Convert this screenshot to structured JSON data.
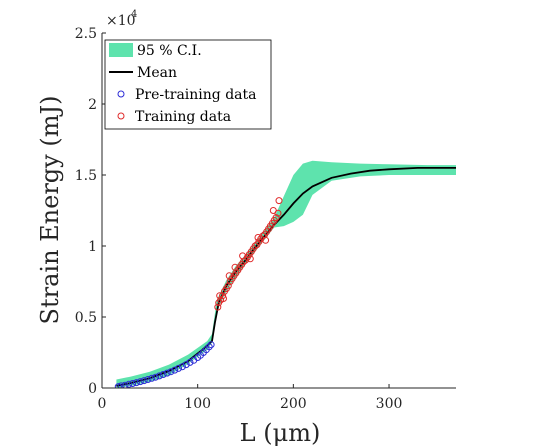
{
  "chart_data": {
    "type": "line",
    "title": "",
    "xlabel": "L (μm)",
    "ylabel": "Strain Energy (mJ)",
    "y_exponent_label": "×10",
    "y_exponent_power": "4",
    "xlim": [
      0,
      370
    ],
    "ylim": [
      0,
      25000
    ],
    "x_ticks": [
      0,
      100,
      200,
      300
    ],
    "y_ticks": [
      0,
      5000,
      10000,
      15000,
      20000,
      25000
    ],
    "x_tick_labels": [
      "0",
      "100",
      "200",
      "300"
    ],
    "y_tick_labels": [
      "0",
      "0.5",
      "1",
      "1.5",
      "2",
      "2.5"
    ],
    "legend_position": "top-left",
    "colors": {
      "ci_fill": "#5ee3ad",
      "mean_line": "#000000",
      "pretraining": "#2c2cd6",
      "training": "#e02a2a"
    },
    "legend": [
      {
        "label": "95 % C.I.",
        "kind": "fill"
      },
      {
        "label": "Mean",
        "kind": "line"
      },
      {
        "label": "Pre-training data",
        "kind": "marker-blue"
      },
      {
        "label": "Training data",
        "kind": "marker-red"
      }
    ],
    "ci_band": {
      "x": [
        15,
        30,
        50,
        70,
        90,
        110,
        115,
        120,
        130,
        140,
        160,
        180,
        190,
        200,
        210,
        220,
        240,
        270,
        300,
        340,
        370
      ],
      "upper": [
        600,
        800,
        1150,
        1650,
        2350,
        3300,
        3800,
        6200,
        7600,
        8600,
        10200,
        12000,
        13500,
        15000,
        15800,
        16000,
        15900,
        15800,
        15750,
        15700,
        15700
      ],
      "lower": [
        0,
        150,
        450,
        900,
        1700,
        2700,
        3200,
        5400,
        6800,
        7800,
        9600,
        11300,
        11400,
        11700,
        12200,
        13600,
        14600,
        14900,
        15000,
        15000,
        15000
      ]
    },
    "series": [
      {
        "name": "Mean",
        "x": [
          15,
          30,
          50,
          70,
          90,
          105,
          115,
          118,
          122,
          130,
          140,
          150,
          160,
          170,
          180,
          190,
          200,
          210,
          220,
          240,
          260,
          280,
          300,
          330,
          370
        ],
        "y": [
          150,
          350,
          700,
          1200,
          1900,
          2700,
          3300,
          4600,
          6000,
          7200,
          8200,
          9000,
          9900,
          10700,
          11500,
          12200,
          13000,
          13700,
          14200,
          14800,
          15100,
          15300,
          15400,
          15500,
          15500
        ]
      },
      {
        "name": "Pre-training data",
        "x": [
          17,
          20,
          24,
          28,
          32,
          36,
          40,
          44,
          48,
          52,
          56,
          60,
          64,
          68,
          72,
          76,
          80,
          84,
          88,
          92,
          96,
          100,
          103,
          106,
          109,
          112,
          114
        ],
        "y": [
          100,
          150,
          200,
          260,
          320,
          380,
          450,
          520,
          600,
          680,
          760,
          850,
          950,
          1050,
          1150,
          1260,
          1380,
          1500,
          1650,
          1800,
          1950,
          2150,
          2300,
          2500,
          2700,
          2900,
          3050
        ]
      },
      {
        "name": "Training data",
        "x": [
          121,
          122,
          124,
          126,
          128,
          130,
          132,
          134,
          136,
          138,
          140,
          142,
          144,
          146,
          148,
          150,
          152,
          154,
          156,
          158,
          160,
          162,
          164,
          166,
          168,
          170,
          172,
          174,
          176,
          178,
          180,
          182,
          184,
          123,
          127,
          133,
          139,
          147,
          155,
          163,
          171,
          179,
          185
        ],
        "y": [
          5700,
          6000,
          6200,
          6500,
          6800,
          7000,
          7200,
          7500,
          7700,
          7900,
          8100,
          8300,
          8500,
          8700,
          8900,
          9000,
          9200,
          9400,
          9600,
          9800,
          10000,
          10100,
          10300,
          10500,
          10700,
          10800,
          11000,
          11200,
          11400,
          11600,
          11800,
          12000,
          12300,
          6500,
          6300,
          7900,
          8500,
          9300,
          9100,
          10600,
          10400,
          12500,
          13200
        ]
      }
    ]
  }
}
